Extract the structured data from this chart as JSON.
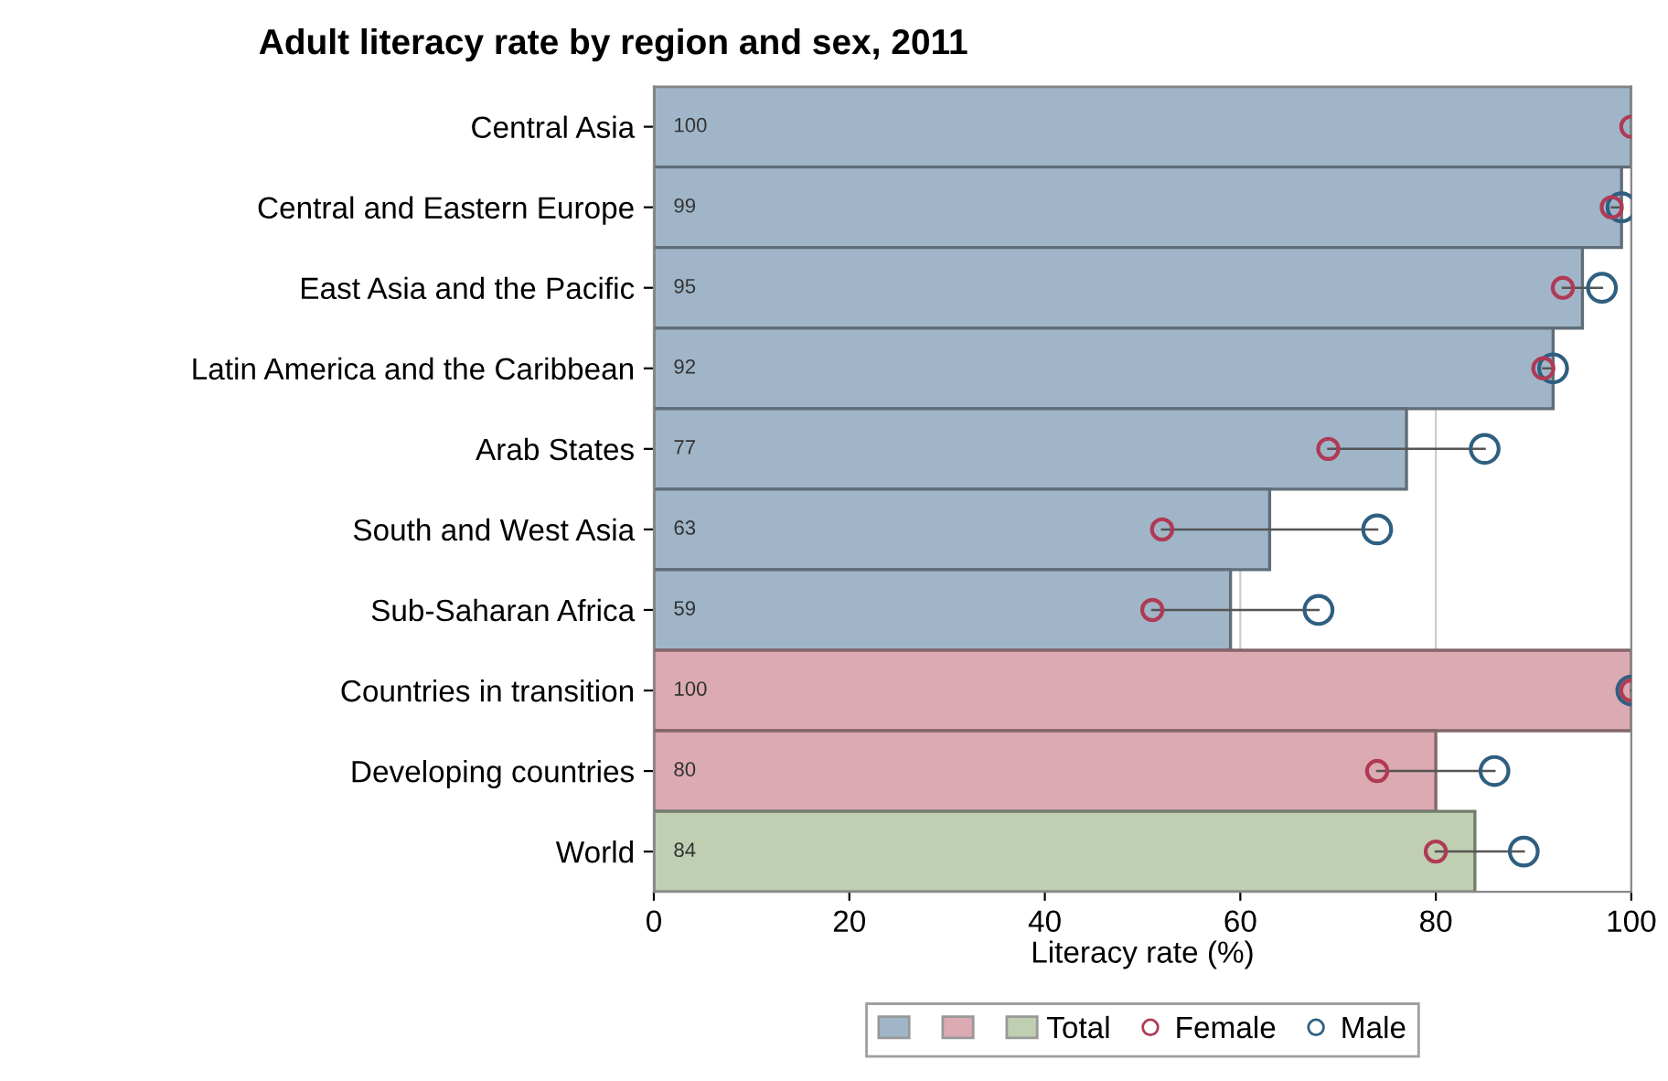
{
  "chart_data": {
    "type": "bar",
    "orientation": "horizontal",
    "title": "Adult literacy rate by region and sex, 2011",
    "xlabel": "Literacy rate (%)",
    "categories": [
      "Central Asia",
      "Central and Eastern Europe",
      "East Asia and the Pacific",
      "Latin America and the Caribbean",
      "Arab States",
      "South and West Asia",
      "Sub-Saharan Africa",
      "Countries in transition",
      "Developing countries",
      "World"
    ],
    "series": [
      {
        "color": "#a0b6c8",
        "values": [
          100,
          99,
          95,
          92,
          77,
          63,
          59,
          null,
          null,
          null
        ],
        "value_labels": [
          "100",
          "99",
          "95",
          "92",
          "77",
          "63",
          "59",
          null,
          null,
          null
        ]
      },
      {
        "color": "#dcaab2",
        "values": [
          null,
          null,
          null,
          null,
          null,
          null,
          null,
          100,
          80,
          null
        ],
        "value_labels": [
          null,
          null,
          null,
          null,
          null,
          null,
          null,
          "100",
          "80",
          null
        ]
      },
      {
        "name": "Total",
        "color": "#c0cfb2",
        "values": [
          null,
          null,
          null,
          null,
          null,
          null,
          null,
          null,
          null,
          84
        ],
        "value_labels": [
          null,
          null,
          null,
          null,
          null,
          null,
          null,
          null,
          null,
          "84"
        ]
      },
      {
        "type": "scatter",
        "name": "Female",
        "color": "#b03a55",
        "values": [
          100,
          98,
          93,
          91,
          69,
          52,
          51,
          100,
          74,
          80
        ]
      },
      {
        "type": "scatter",
        "name": "Male",
        "color": "#2f5f80",
        "values": [
          null,
          99,
          97,
          92,
          85,
          74,
          68,
          100,
          86,
          89
        ]
      }
    ],
    "xlim": [
      0,
      100
    ],
    "xticks": [
      0,
      20,
      40,
      60,
      80,
      100
    ],
    "grid": "x",
    "legend": "bottom",
    "marker": "circle"
  }
}
